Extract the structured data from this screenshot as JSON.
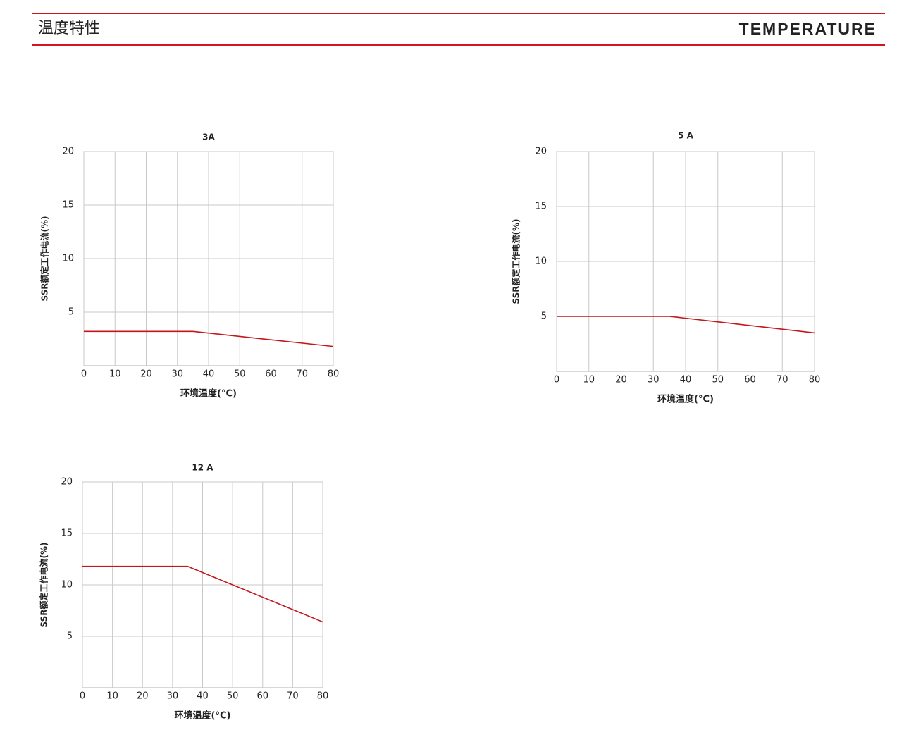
{
  "header": {
    "title_cn": "温度特性",
    "title_en": "TEMPERATURE"
  },
  "chart_data": [
    {
      "type": "line",
      "title": "3A",
      "x_label": "环境温度(°C)",
      "y_label": "SSR额定工作电流(%)",
      "x": [
        0,
        35,
        80
      ],
      "values": [
        3.2,
        3.2,
        1.8
      ],
      "color": "#c4161c",
      "xlim": [
        0,
        80
      ],
      "ylim": [
        0,
        20
      ],
      "xticks": [
        0,
        10,
        20,
        30,
        40,
        50,
        60,
        70,
        80
      ],
      "yticks": [
        5,
        10,
        15,
        20
      ],
      "grid": true
    },
    {
      "type": "line",
      "title": "5 A",
      "x_label": "环境温度(°C)",
      "y_label": "SSR额定工作电流(%)",
      "x": [
        0,
        35,
        80
      ],
      "values": [
        5,
        5,
        3.5
      ],
      "color": "#c4161c",
      "xlim": [
        0,
        80
      ],
      "ylim": [
        0,
        20
      ],
      "xticks": [
        0,
        10,
        20,
        30,
        40,
        50,
        60,
        70,
        80
      ],
      "yticks": [
        5,
        10,
        15,
        20
      ],
      "grid": true
    },
    {
      "type": "line",
      "title": "12 A",
      "x_label": "环境温度(°C)",
      "y_label": "SSR额定工作电流(%)",
      "x": [
        0,
        35,
        80
      ],
      "values": [
        11.8,
        11.8,
        6.4
      ],
      "color": "#c4161c",
      "xlim": [
        0,
        80
      ],
      "ylim": [
        0,
        20
      ],
      "xticks": [
        0,
        10,
        20,
        30,
        40,
        50,
        60,
        70,
        80
      ],
      "yticks": [
        5,
        10,
        15,
        20
      ],
      "grid": true
    }
  ]
}
